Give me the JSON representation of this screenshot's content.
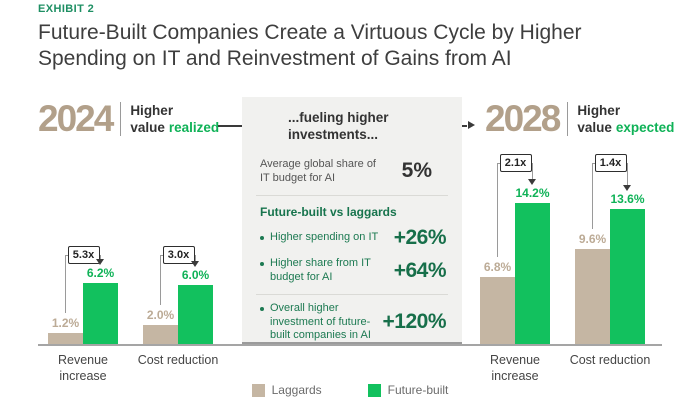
{
  "exhibit_label": "EXHIBIT 2",
  "title": "Future-Built Companies Create a Virtuous Cycle by Higher Spending on IT and Reinvestment of Gains from AI",
  "periods": {
    "left": {
      "year": "2024",
      "caption_line1": "Higher",
      "caption_line2_prefix": "value",
      "caption_highlight": "realized"
    },
    "right": {
      "year": "2028",
      "caption_line1": "Higher",
      "caption_line2_prefix": "value",
      "caption_highlight": "expected"
    }
  },
  "panel": {
    "header": "...fueling higher investments...",
    "budget_row": {
      "label": "Average global share of IT budget for AI",
      "value": "5%"
    },
    "comparison_header": "Future-built vs laggards",
    "bullets": [
      {
        "label": "Higher spending on IT",
        "value": "+26%"
      },
      {
        "label": "Higher share from IT budget for AI",
        "value": "+64%"
      },
      {
        "label": "Overall higher investment of future-built companies in AI",
        "value": "+120%"
      }
    ]
  },
  "legend": [
    {
      "label": "Laggards",
      "color": "#c5b6a3"
    },
    {
      "label": "Future-built",
      "color": "#12c15e"
    }
  ],
  "colors": {
    "laggard_bar": "#c5b6a3",
    "future_built_bar": "#12c15e",
    "laggard_label": "#bcab96",
    "future_built_label": "#0fb257",
    "accent_green": "#1e8f63",
    "tan_text": "#b2a08a",
    "panel_bg": "#f1f1ef"
  },
  "chart_data": [
    {
      "type": "bar",
      "title": "2024 Higher value realized",
      "categories": [
        "Revenue increase",
        "Cost reduction"
      ],
      "series": [
        {
          "name": "Laggards",
          "values": [
            1.2,
            2.0
          ],
          "labels": [
            "1.2%",
            "2.0%"
          ]
        },
        {
          "name": "Future-built",
          "values": [
            6.2,
            6.0
          ],
          "labels": [
            "6.2%",
            "6.0%"
          ]
        }
      ],
      "multipliers": [
        "5.3x",
        "3.0x"
      ],
      "unit": "%",
      "ylim": [
        0,
        15
      ],
      "grid": false,
      "legend_position": "bottom-center"
    },
    {
      "type": "bar",
      "title": "2028 Higher value expected",
      "categories": [
        "Revenue increase",
        "Cost reduction"
      ],
      "series": [
        {
          "name": "Laggards",
          "values": [
            6.8,
            9.6
          ],
          "labels": [
            "6.8%",
            "9.6%"
          ]
        },
        {
          "name": "Future-built",
          "values": [
            14.2,
            13.6
          ],
          "labels": [
            "14.2%",
            "13.6%"
          ]
        }
      ],
      "multipliers": [
        "2.1x",
        "1.4x"
      ],
      "unit": "%",
      "ylim": [
        0,
        15
      ],
      "grid": false,
      "legend_position": "bottom-center"
    }
  ]
}
